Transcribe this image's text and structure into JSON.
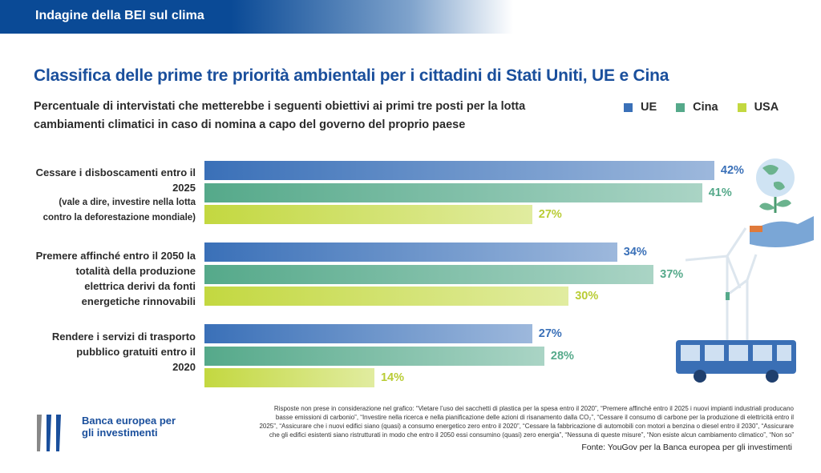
{
  "header": {
    "banner": "Indagine della BEI sul clima"
  },
  "title": "Classifica delle prime tre priorità ambientali per i cittadini di Stati Uniti, UE e Cina",
  "subtitle": "Percentuale di intervistati che metterebbe i seguenti obiettivi ai primi tre posti per la lotta cambiamenti climatici in caso di nomina a capo del governo del proprio paese",
  "chart_data": {
    "type": "bar",
    "orientation": "horizontal",
    "categories": [
      {
        "label": "Cessare i disboscamenti entro il 2025",
        "note": "(vale a dire, investire nella lotta contro la deforestazione mondiale)"
      },
      {
        "label": "Premere affinché entro il 2050 la totalità della produzione elettrica derivi da fonti energetiche rinnovabili",
        "note": ""
      },
      {
        "label": "Rendere i servizi di trasporto pubblico gratuiti entro il 2020",
        "note": ""
      }
    ],
    "series": [
      {
        "name": "UE",
        "color": "#3a70b8",
        "values": [
          42,
          34,
          27
        ]
      },
      {
        "name": "Cina",
        "color": "#55a98a",
        "values": [
          41,
          37,
          28
        ]
      },
      {
        "name": "USA",
        "color": "#c3d840",
        "values": [
          27,
          30,
          14
        ]
      }
    ],
    "value_suffix": "%",
    "legend": "top-right",
    "grid": false
  },
  "footnote": "Risposte non prese in considerazione nel grafico: “Vietare l’uso dei sacchetti di plastica per la spesa entro il 2020”, “Premere affinché entro il 2025 i nuovi impianti industriali producano basse emissioni di carbonio”, “Investire nella ricerca e nella pianificazione delle azioni di risanamento dalla CO₂”, “Cessare il consumo di carbone per la produzione di elettricità entro il 2025”, “Assicurare che i nuovi edifici siano (quasi) a consumo energetico zero entro il 2020”, “Cessare la fabbricazione di automobili con motori a benzina o diesel entro il 2030”, “Assicurare che gli edifici esistenti siano ristrutturati in modo che entro il 2050 essi consumino (quasi) zero energia”, “Nessuna di queste misure”, “Non esiste alcun cambiamento climatico”, “Non so”",
  "source": "Fonte: YouGov per la Banca europea per gli investimenti",
  "logo": {
    "text": "Banca europea per gli investimenti"
  }
}
